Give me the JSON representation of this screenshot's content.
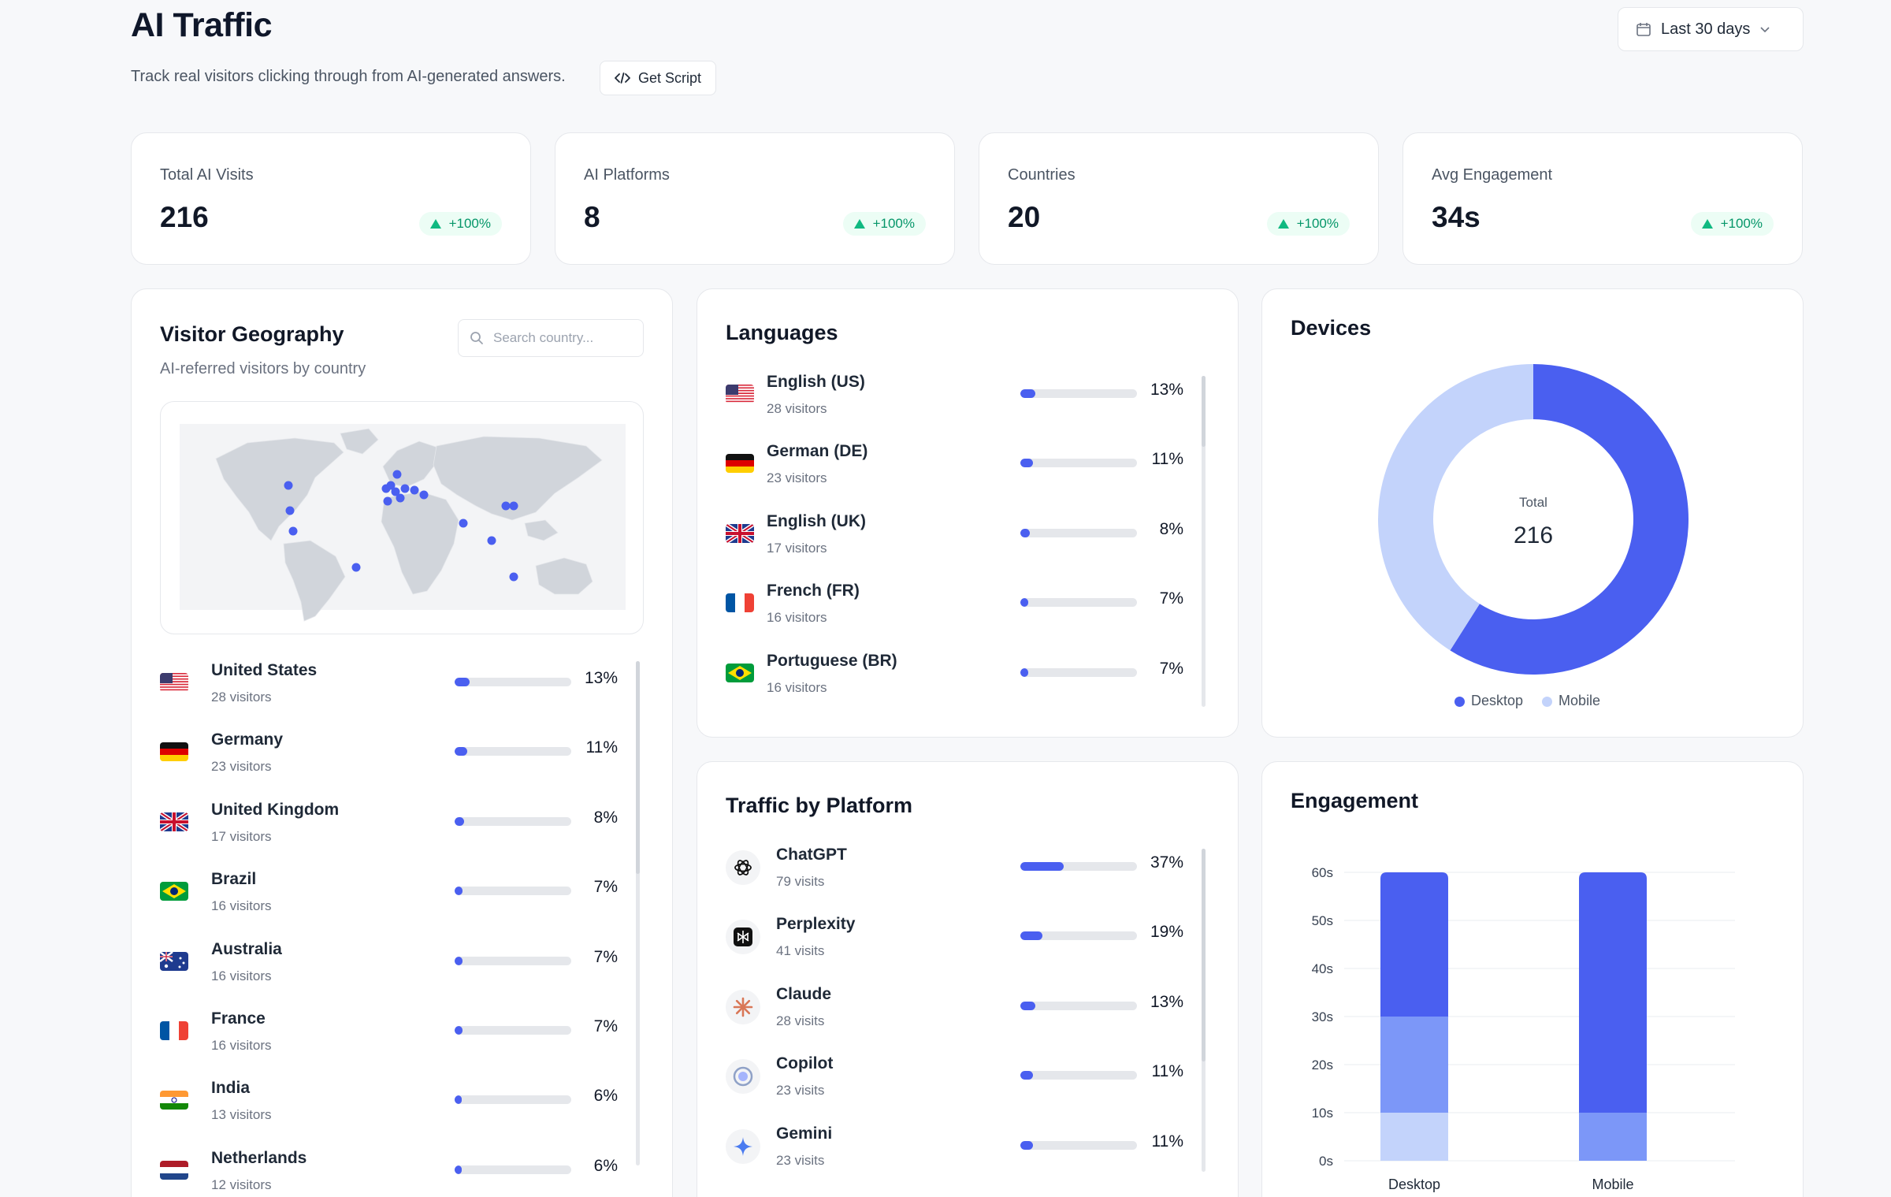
{
  "header": {
    "title": "AI Traffic",
    "subtitle": "Track real visitors clicking through from AI-generated answers.",
    "get_script_label": "Get Script",
    "date_range": "Last 30 days"
  },
  "kpis": [
    {
      "label": "Total AI Visits",
      "value": "216",
      "change": "+100%"
    },
    {
      "label": "AI Platforms",
      "value": "8",
      "change": "+100%"
    },
    {
      "label": "Countries",
      "value": "20",
      "change": "+100%"
    },
    {
      "label": "Avg Engagement",
      "value": "34s",
      "change": "+100%"
    }
  ],
  "geography": {
    "title": "Visitor Geography",
    "subtitle": "AI-referred visitors by country",
    "search_placeholder": "Search country...",
    "countries": [
      {
        "name": "United States",
        "visitors": "28 visitors",
        "pct": "13%",
        "share": 13,
        "flag": "us"
      },
      {
        "name": "Germany",
        "visitors": "23 visitors",
        "pct": "11%",
        "share": 11,
        "flag": "de"
      },
      {
        "name": "United Kingdom",
        "visitors": "17 visitors",
        "pct": "8%",
        "share": 8,
        "flag": "uk"
      },
      {
        "name": "Brazil",
        "visitors": "16 visitors",
        "pct": "7%",
        "share": 7,
        "flag": "br"
      },
      {
        "name": "Australia",
        "visitors": "16 visitors",
        "pct": "7%",
        "share": 7,
        "flag": "au"
      },
      {
        "name": "France",
        "visitors": "16 visitors",
        "pct": "7%",
        "share": 7,
        "flag": "fr"
      },
      {
        "name": "India",
        "visitors": "13 visitors",
        "pct": "6%",
        "share": 6,
        "flag": "in"
      },
      {
        "name": "Netherlands",
        "visitors": "12 visitors",
        "pct": "6%",
        "share": 6,
        "flag": "nl"
      }
    ]
  },
  "languages": {
    "title": "Languages",
    "items": [
      {
        "name": "English (US)",
        "visitors": "28 visitors",
        "pct": "13%",
        "share": 13,
        "flag": "us"
      },
      {
        "name": "German (DE)",
        "visitors": "23 visitors",
        "pct": "11%",
        "share": 11,
        "flag": "de"
      },
      {
        "name": "English (UK)",
        "visitors": "17 visitors",
        "pct": "8%",
        "share": 8,
        "flag": "uk"
      },
      {
        "name": "French (FR)",
        "visitors": "16 visitors",
        "pct": "7%",
        "share": 7,
        "flag": "fr"
      },
      {
        "name": "Portuguese (BR)",
        "visitors": "16 visitors",
        "pct": "7%",
        "share": 7,
        "flag": "br"
      }
    ]
  },
  "platforms": {
    "title": "Traffic by Platform",
    "items": [
      {
        "name": "ChatGPT",
        "visits": "79 visits",
        "pct": "37%",
        "share": 37,
        "icon": "chatgpt-icon"
      },
      {
        "name": "Perplexity",
        "visits": "41 visits",
        "pct": "19%",
        "share": 19,
        "icon": "perplexity-icon"
      },
      {
        "name": "Claude",
        "visits": "28 visits",
        "pct": "13%",
        "share": 13,
        "icon": "claude-icon"
      },
      {
        "name": "Copilot",
        "visits": "23 visits",
        "pct": "11%",
        "share": 11,
        "icon": "copilot-icon"
      },
      {
        "name": "Gemini",
        "visits": "23 visits",
        "pct": "11%",
        "share": 11,
        "icon": "gemini-icon"
      }
    ]
  },
  "devices": {
    "title": "Devices",
    "center_label": "Total",
    "center_value": "216",
    "legend": [
      {
        "name": "Desktop",
        "color": "#4a5ff0"
      },
      {
        "name": "Mobile",
        "color": "#c3d3fb"
      }
    ]
  },
  "engagement": {
    "title": "Engagement"
  },
  "chart_data": [
    {
      "type": "pie",
      "title": "Devices",
      "categories": [
        "Desktop",
        "Mobile"
      ],
      "values": [
        59,
        41
      ],
      "colors": [
        "#4a5ff0",
        "#c3d3fb"
      ]
    },
    {
      "type": "bar",
      "title": "Engagement",
      "categories": [
        "Desktop",
        "Mobile"
      ],
      "yticks": [
        "0s",
        "10s",
        "20s",
        "30s",
        "40s",
        "50s",
        "60s"
      ],
      "ylim": [
        0,
        60
      ],
      "stacked": true,
      "series": [
        {
          "values": [
            10,
            10
          ],
          "colors": [
            "#c3d3fb",
            "#7c97f8"
          ]
        },
        {
          "values": [
            20,
            50
          ],
          "colors": [
            "#7c97f8",
            "#4a5ff0"
          ]
        },
        {
          "values": [
            30,
            0
          ],
          "colors": [
            "#4a5ff0",
            "#4a5ff0"
          ]
        }
      ]
    }
  ],
  "colors": {
    "accent": "#4a5ff0",
    "accent_light": "#c3d3fb",
    "positive": "#10b981"
  }
}
